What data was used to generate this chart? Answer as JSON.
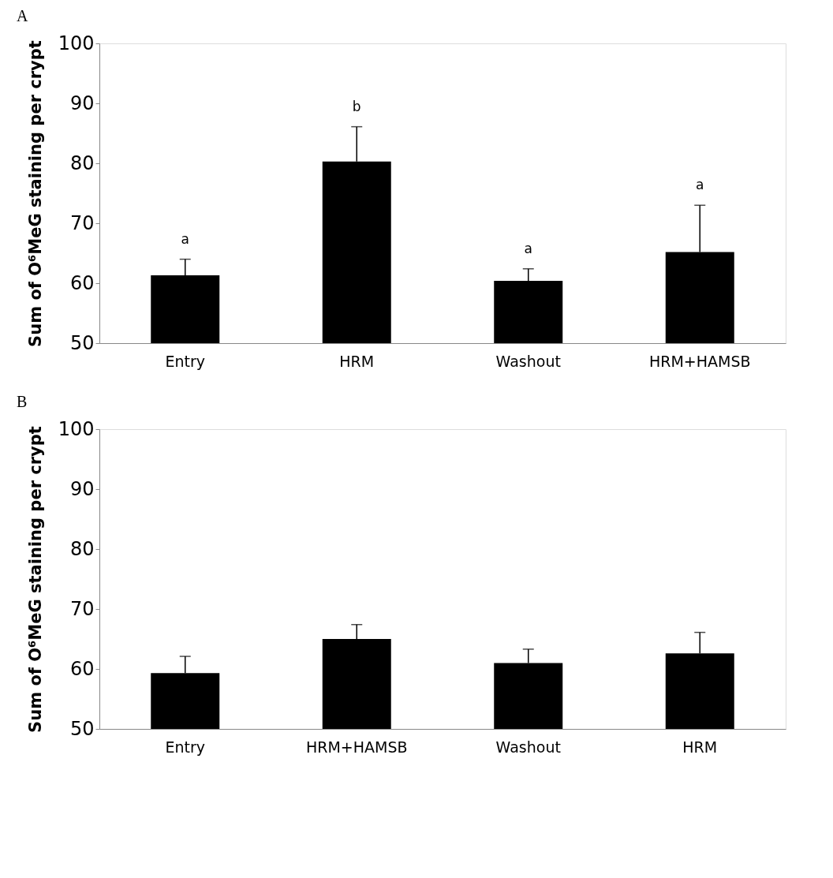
{
  "chart_data": [
    {
      "type": "bar",
      "title": "A",
      "ylabel": "Sum of O⁶MeG staining per crypt",
      "categories": [
        "Entry",
        "HRM",
        "Washout",
        "HRM+HAMSB"
      ],
      "values": [
        61.3,
        80.3,
        60.4,
        65.2
      ],
      "errors": [
        [
          61.3,
          64.0
        ],
        [
          80.3,
          86.1
        ],
        [
          60.4,
          62.4
        ],
        [
          65.2,
          73.0
        ]
      ],
      "color": "#000000",
      "ylim": [
        50,
        100
      ],
      "yticks": [
        50,
        60,
        70,
        80,
        90,
        100
      ],
      "grid": false,
      "annotations": [
        "a",
        "b",
        "a",
        "a"
      ]
    },
    {
      "type": "bar",
      "title": "B",
      "ylabel": "Sum of O⁶MeG staining per crypt",
      "categories": [
        "Entry",
        "HRM+HAMSB",
        "Washout",
        "HRM"
      ],
      "values": [
        59.3,
        65.0,
        61.0,
        62.6
      ],
      "errors": [
        [
          59.3,
          62.1
        ],
        [
          65.0,
          67.4
        ],
        [
          61.0,
          63.3
        ],
        [
          62.6,
          66.1
        ]
      ],
      "color": "#000000",
      "ylim": [
        50,
        100
      ],
      "yticks": [
        50,
        60,
        70,
        80,
        90,
        100
      ],
      "grid": false
    }
  ]
}
